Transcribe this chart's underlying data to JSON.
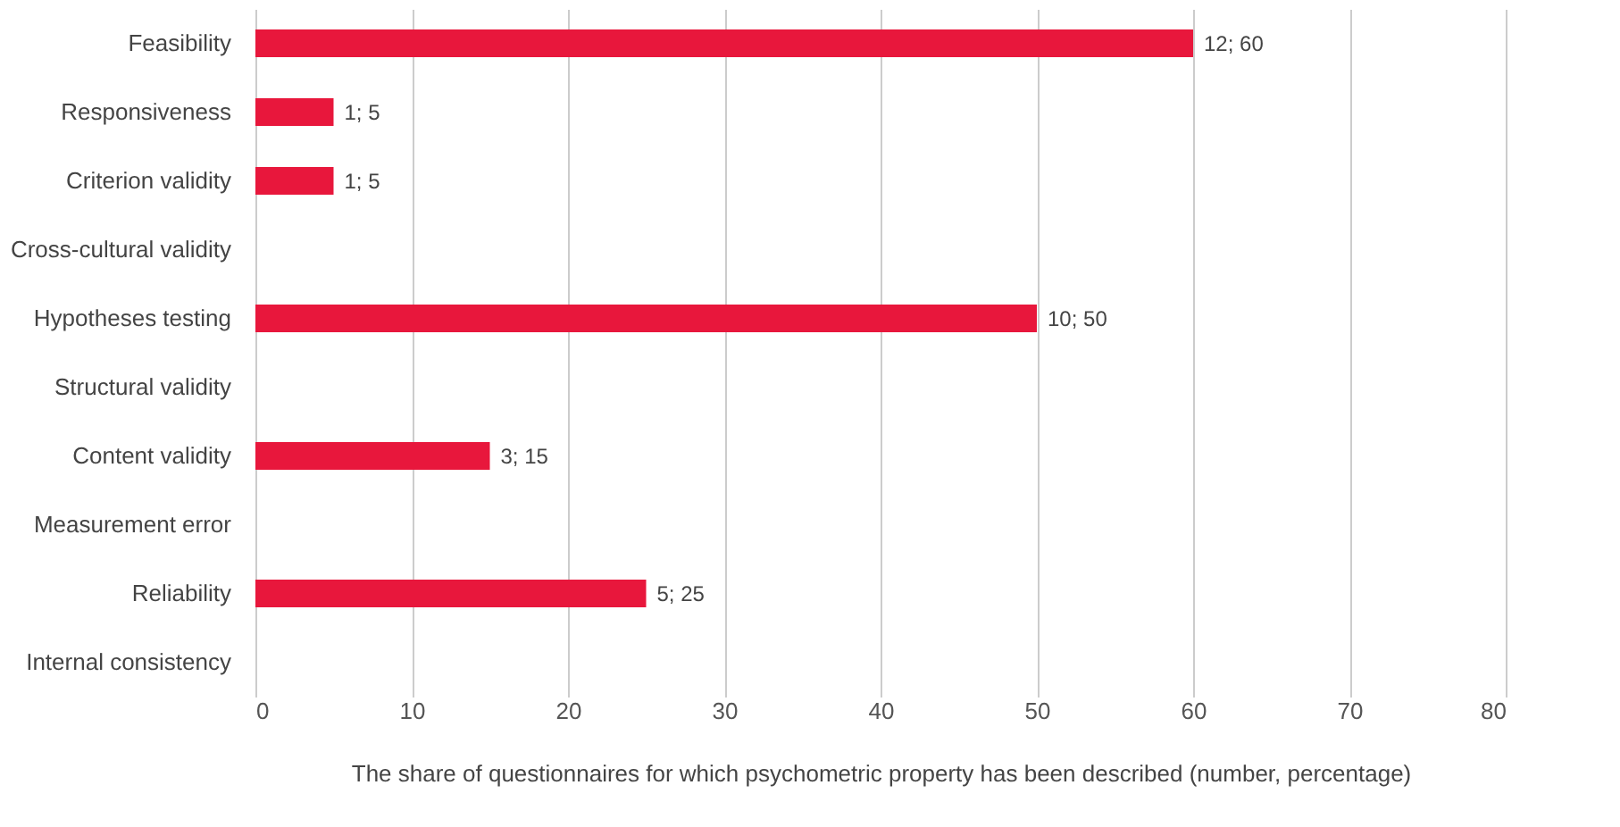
{
  "chart_data": {
    "type": "bar",
    "orientation": "horizontal",
    "categories": [
      "Feasibility",
      "Responsiveness",
      "Criterion validity",
      "Cross-cultural validity",
      "Hypotheses testing",
      "Structural validity",
      "Content validity",
      "Measurement error",
      "Reliability",
      "Internal consistency"
    ],
    "values": [
      60,
      5,
      5,
      0,
      50,
      0,
      15,
      0,
      25,
      0
    ],
    "value_labels": [
      "12; 60",
      "1; 5",
      "1; 5",
      null,
      "10; 50",
      null,
      "3; 15",
      null,
      "5; 25",
      null
    ],
    "color": "#e8173c",
    "xlim": [
      0,
      80
    ],
    "xticks": [
      0,
      10,
      20,
      30,
      40,
      50,
      60,
      70,
      80
    ],
    "grid": "x",
    "xlabel": "The share of questionnaires for which  psychometric property has been described (number, percentage)"
  }
}
